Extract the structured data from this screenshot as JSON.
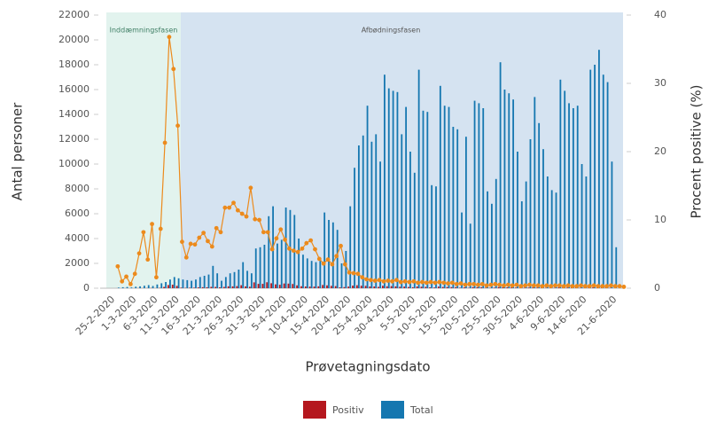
{
  "chart_data": {
    "type": "bar-line",
    "x_label": "Prøvetagningsdato",
    "y_label": "Antal personer",
    "y2_label": "Procent positive (%)",
    "annotations": [
      "Inddæmningsfasen",
      "Afbødningsfasen"
    ],
    "categories": [
      "25-2-2020",
      null,
      null,
      null,
      null,
      "1-3-2020",
      null,
      null,
      null,
      null,
      "6-3-2020",
      null,
      null,
      null,
      null,
      "11-3-2020",
      null,
      null,
      null,
      null,
      "16-3-2020",
      null,
      null,
      null,
      null,
      "21-3-2020",
      null,
      null,
      null,
      null,
      "26-3-2020",
      null,
      null,
      null,
      null,
      "31-3-2020",
      null,
      null,
      null,
      null,
      "5-4-2020",
      null,
      null,
      null,
      null,
      "10-4-2020",
      null,
      null,
      null,
      null,
      "15-4-2020",
      null,
      null,
      null,
      null,
      "20-4-2020",
      null,
      null,
      null,
      null,
      "25-4-2020",
      null,
      null,
      null,
      null,
      "30-4-2020",
      null,
      null,
      null,
      null,
      "5-5-2020",
      null,
      null,
      null,
      null,
      "10-5-2020",
      null,
      null,
      null,
      null,
      "15-5-2020",
      null,
      null,
      null,
      null,
      "20-5-2020",
      null,
      null,
      null,
      null,
      "25-5-2020",
      null,
      null,
      null,
      null,
      "30-5-2020",
      null,
      null,
      null,
      null,
      "4-6-2020",
      null,
      null,
      null,
      null,
      "9-6-2020",
      null,
      null,
      null,
      null,
      "14-6-2020",
      null,
      null,
      null,
      null,
      null,
      null,
      "21-6-2020",
      null,
      null
    ],
    "series": [
      {
        "name": "Positiv",
        "color": "#b5171e",
        "values": [
          0,
          2,
          1,
          2,
          0,
          3,
          8,
          8,
          10,
          17,
          5,
          26,
          106,
          258,
          283,
          190,
          47,
          29,
          39,
          45,
          66,
          81,
          76,
          110,
          105,
          71,
          106,
          150,
          150,
          170,
          240,
          150,
          120,
          470,
          350,
          350,
          480,
          400,
          310,
          280,
          380,
          370,
          340,
          230,
          160,
          140,
          130,
          130,
          150,
          260,
          230,
          190,
          170,
          70,
          90,
          130,
          210,
          240,
          200,
          190,
          140,
          140,
          110,
          200,
          160,
          170,
          150,
          120,
          130,
          100,
          80,
          140,
          120,
          110,
          70,
          60,
          130,
          100,
          100,
          90,
          90,
          40,
          70,
          30,
          90,
          80,
          80,
          40,
          30,
          50,
          90,
          80,
          70,
          60,
          50,
          30,
          40,
          50,
          60,
          50,
          40,
          30,
          30,
          30,
          60,
          60,
          50,
          50,
          50,
          30,
          30,
          50,
          60,
          60,
          50,
          50,
          30,
          10,
          null,
          null
        ]
      },
      {
        "name": "Total",
        "color": "#1577b0",
        "values": [
          0,
          50,
          80,
          100,
          60,
          120,
          150,
          200,
          250,
          180,
          300,
          400,
          500,
          700,
          900,
          800,
          700,
          650,
          600,
          700,
          900,
          1000,
          1100,
          1800,
          1200,
          600,
          900,
          1200,
          1300,
          1500,
          2100,
          1400,
          1200,
          3200,
          3300,
          3500,
          5800,
          6600,
          3600,
          3900,
          6500,
          6300,
          5900,
          4000,
          2700,
          2400,
          2200,
          2100,
          2200,
          6100,
          5500,
          5300,
          4700,
          2000,
          3000,
          6600,
          9700,
          11500,
          12300,
          14700,
          11800,
          12400,
          10200,
          17200,
          16100,
          15900,
          15800,
          12400,
          14600,
          11000,
          9300,
          17600,
          14300,
          14200,
          8300,
          8200,
          16300,
          14700,
          14600,
          13000,
          12800,
          6100,
          12200,
          5200,
          15100,
          14900,
          14500,
          7800,
          6800,
          8800,
          18200,
          16000,
          15700,
          15200,
          11000,
          7000,
          8600,
          12000,
          15400,
          13300,
          11200,
          9000,
          7900,
          7700,
          16800,
          15900,
          14900,
          14500,
          14700,
          10000,
          9000,
          17600,
          18000,
          19200,
          17200,
          16600,
          10200,
          3300,
          null,
          null
        ]
      },
      {
        "color": "#ec8a1c",
        "axis": "y2",
        "values": [
          null,
          3.2,
          1.0,
          1.7,
          0.6,
          2.1,
          5.1,
          8.2,
          4.2,
          9.4,
          1.6,
          8.7,
          21.3,
          36.8,
          32.1,
          23.8,
          6.8,
          4.5,
          6.5,
          6.4,
          7.4,
          8.1,
          6.9,
          6.1,
          8.8,
          8.2,
          11.8,
          11.8,
          12.5,
          11.4,
          10.9,
          10.5,
          14.7,
          10.1,
          10.0,
          8.2,
          8.2,
          5.7,
          7.3,
          8.6,
          7.1,
          5.8,
          5.5,
          5.3,
          5.8,
          6.6,
          7.0,
          5.7,
          4.3,
          3.6,
          4.2,
          3.5,
          4.7,
          6.2,
          3.5,
          2.3,
          2.2,
          2.1,
          1.6,
          1.3,
          1.2,
          1.1,
          1.2,
          1.0,
          1.1,
          1.0,
          1.2,
          0.9,
          1.0,
          0.9,
          1.0,
          0.8,
          0.9,
          0.8,
          0.9,
          0.8,
          0.9,
          0.8,
          0.7,
          0.8,
          0.6,
          0.7,
          0.5,
          0.6,
          0.6,
          0.5,
          0.6,
          0.4,
          0.5,
          0.6,
          0.5,
          0.4,
          0.5,
          0.4,
          0.5,
          0.3,
          0.4,
          0.5,
          0.4,
          0.4,
          0.3,
          0.4,
          0.3,
          0.4,
          0.4,
          0.3,
          0.4,
          0.3,
          0.3,
          0.4,
          0.3,
          0.3,
          0.4,
          0.3,
          0.3,
          0.3,
          0.4,
          0.3,
          0.3,
          0.2
        ]
      }
    ],
    "ylim": [
      0,
      22000
    ],
    "yticks": [
      0,
      2000,
      4000,
      6000,
      8000,
      10000,
      12000,
      14000,
      16000,
      18000,
      20000,
      22000
    ],
    "y2lim": [
      0,
      40
    ],
    "y2ticks": [
      0,
      10,
      20,
      30,
      40
    ],
    "legend": "bottom"
  }
}
